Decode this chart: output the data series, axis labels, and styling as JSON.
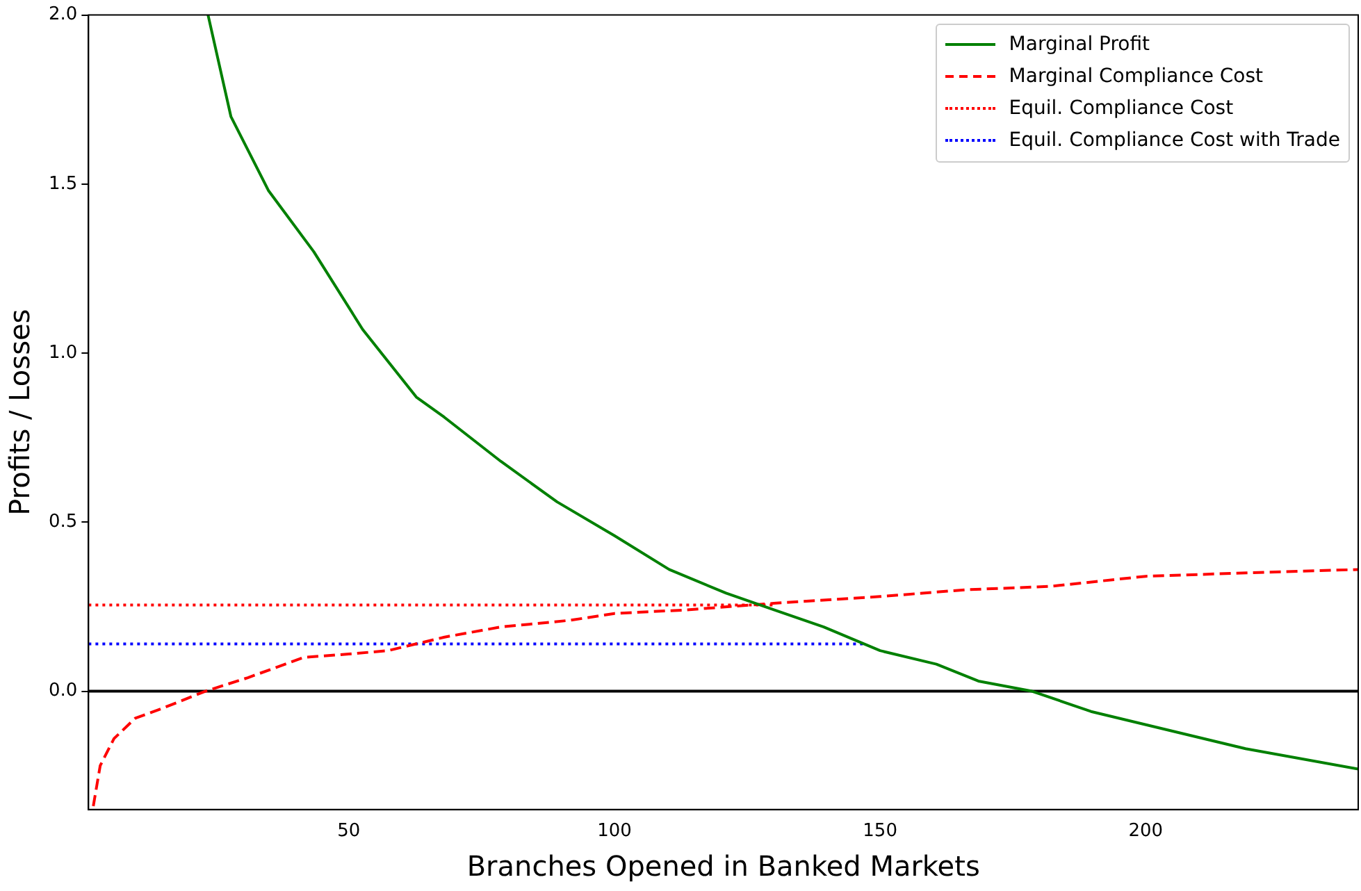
{
  "chart_data": {
    "type": "line",
    "xlabel": "Branches Opened in Banked Markets",
    "ylabel": "Profits / Losses",
    "xlim": [
      1,
      240
    ],
    "ylim": [
      -0.35,
      2.0
    ],
    "xticks": [
      50,
      100,
      150,
      200
    ],
    "yticks": [
      {
        "value": 0,
        "label": "0.0"
      },
      0.5,
      {
        "value": 1,
        "label": "1.0"
      },
      1.5,
      {
        "value": 2,
        "label": "2.0"
      }
    ],
    "grid": false,
    "legend": "top right",
    "series": [
      {
        "name": "Marginal Profit",
        "color": "#008000",
        "line_style": "solid",
        "x": [
          23.5,
          27.8,
          34.9,
          43.4,
          52.6,
          62.7,
          68,
          78.6,
          89.2,
          100,
          110.3,
          121,
          130.2,
          139.4,
          150,
          160.6,
          168.5,
          178.6,
          189.7,
          200.3,
          218.8,
          240
        ],
        "values": [
          2.0,
          1.7,
          1.48,
          1.3,
          1.07,
          0.87,
          0.81,
          0.68,
          0.56,
          0.46,
          0.36,
          0.29,
          0.24,
          0.19,
          0.12,
          0.08,
          0.03,
          0.0,
          -0.06,
          -0.1,
          -0.17,
          -0.23
        ]
      },
      {
        "name": "Marginal Compliance Cost",
        "color": "#ff0000",
        "line_style": "dashed",
        "x": [
          1.9,
          3.2,
          5.8,
          9.8,
          15,
          23,
          31,
          41.5,
          50,
          57.4,
          68,
          78.6,
          91.8,
          100,
          113,
          130,
          150,
          166,
          182,
          200,
          219,
          240
        ],
        "values": [
          -0.34,
          -0.22,
          -0.14,
          -0.08,
          -0.05,
          0.0,
          0.04,
          0.1,
          0.11,
          0.12,
          0.16,
          0.19,
          0.21,
          0.23,
          0.24,
          0.26,
          0.28,
          0.3,
          0.31,
          0.34,
          0.35,
          0.36
        ]
      },
      {
        "name": "Equil. Compliance Cost",
        "color": "#ff0000",
        "line_style": "dotted",
        "x": [
          1,
          130
        ],
        "values": [
          0.255,
          0.255
        ]
      },
      {
        "name": "Equil. Compliance Cost with Trade",
        "color": "#0000ff",
        "line_style": "dotted",
        "x": [
          1,
          147
        ],
        "values": [
          0.14,
          0.14
        ]
      }
    ],
    "ref_lines": [
      {
        "axis": "y",
        "value": 0,
        "color": "#000000",
        "line_style": "solid"
      }
    ]
  }
}
